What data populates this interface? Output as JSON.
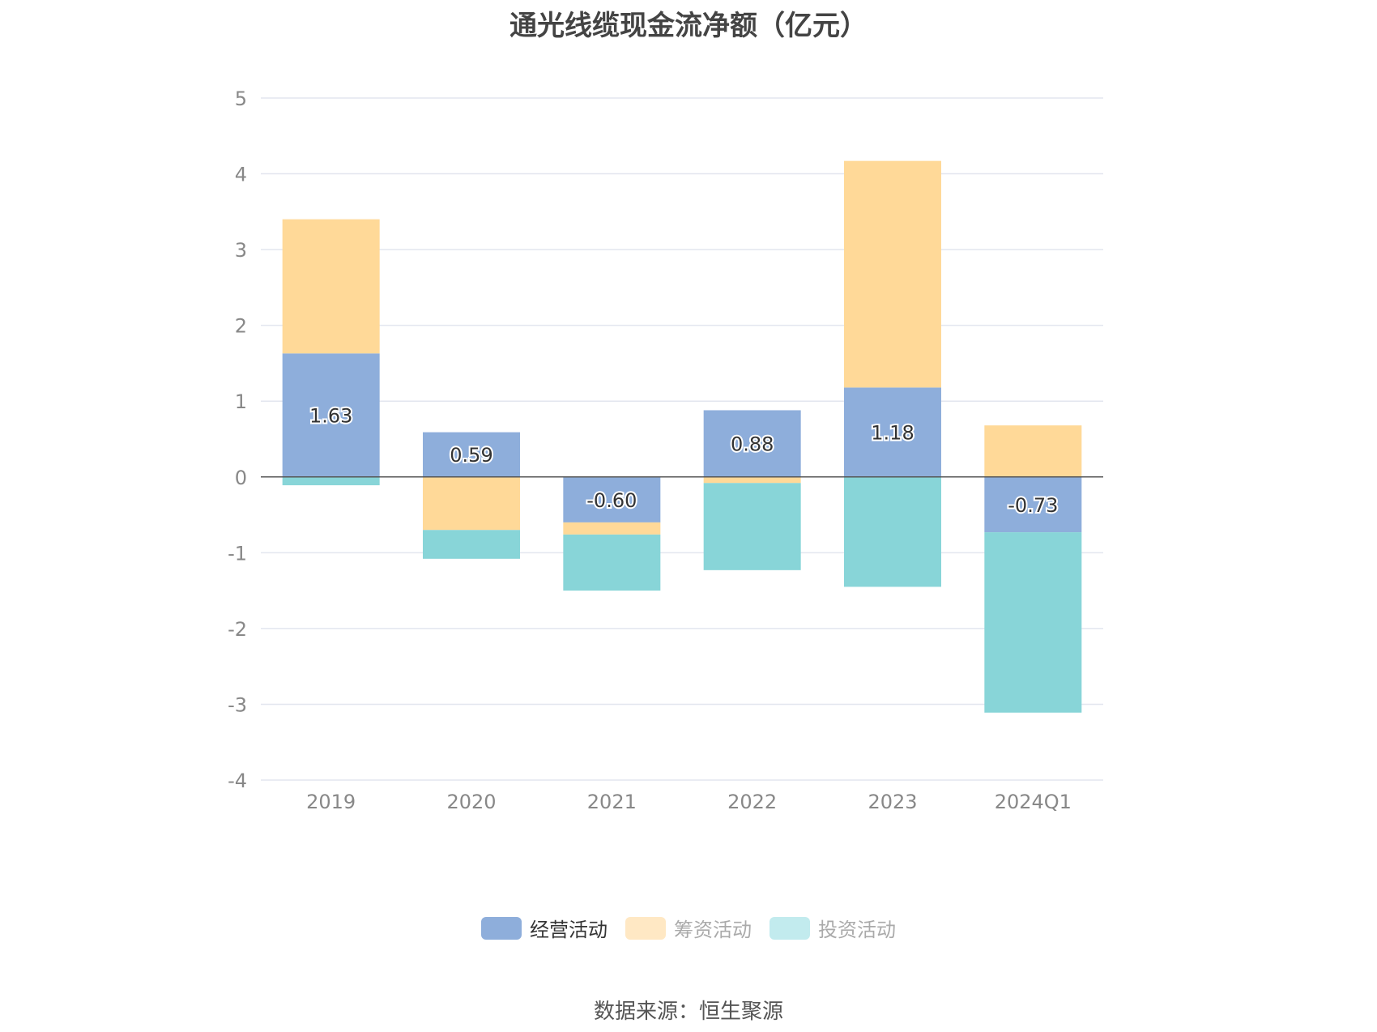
{
  "title": "通光线缆现金流净额（亿元）",
  "source": "数据来源：恒生聚源",
  "colors": {
    "operating": "#8eaedb",
    "financing": "#ffd998",
    "investing": "#88d5d8",
    "grid": "#e3e6ef",
    "zero_line": "#555555",
    "axis_text": "#888888"
  },
  "legend": [
    {
      "label": "经营活动",
      "color": "#8eaedb",
      "swatch": "#8eaedb",
      "active": true
    },
    {
      "label": "筹资活动",
      "color": "#ffd998",
      "swatch": "#ffe8c4",
      "active": false
    },
    {
      "label": "投资活动",
      "color": "#88d5d8",
      "swatch": "#c2ebee",
      "active": false
    }
  ],
  "chart_data": {
    "type": "bar",
    "stacked": true,
    "title": "通光线缆现金流净额（亿元）",
    "categories": [
      "2019",
      "2020",
      "2021",
      "2022",
      "2023",
      "2024Q1"
    ],
    "ylim": [
      -4,
      5
    ],
    "yticks": [
      5,
      4,
      3,
      2,
      1,
      0,
      -1,
      -2,
      -3,
      -4
    ],
    "grid": true,
    "legend_position": "bottom",
    "series": [
      {
        "name": "经营活动",
        "values": [
          1.63,
          0.59,
          -0.6,
          0.88,
          1.18,
          -0.73
        ],
        "labels": [
          "1.63",
          "0.59",
          "-0.60",
          "0.88",
          "1.18",
          "-0.73"
        ]
      },
      {
        "name": "筹资活动",
        "values": [
          1.77,
          -0.7,
          -0.16,
          -0.08,
          2.99,
          0.68
        ]
      },
      {
        "name": "投资活动",
        "values": [
          -0.11,
          -0.38,
          -0.74,
          -1.15,
          -1.45,
          -2.38
        ]
      }
    ]
  }
}
